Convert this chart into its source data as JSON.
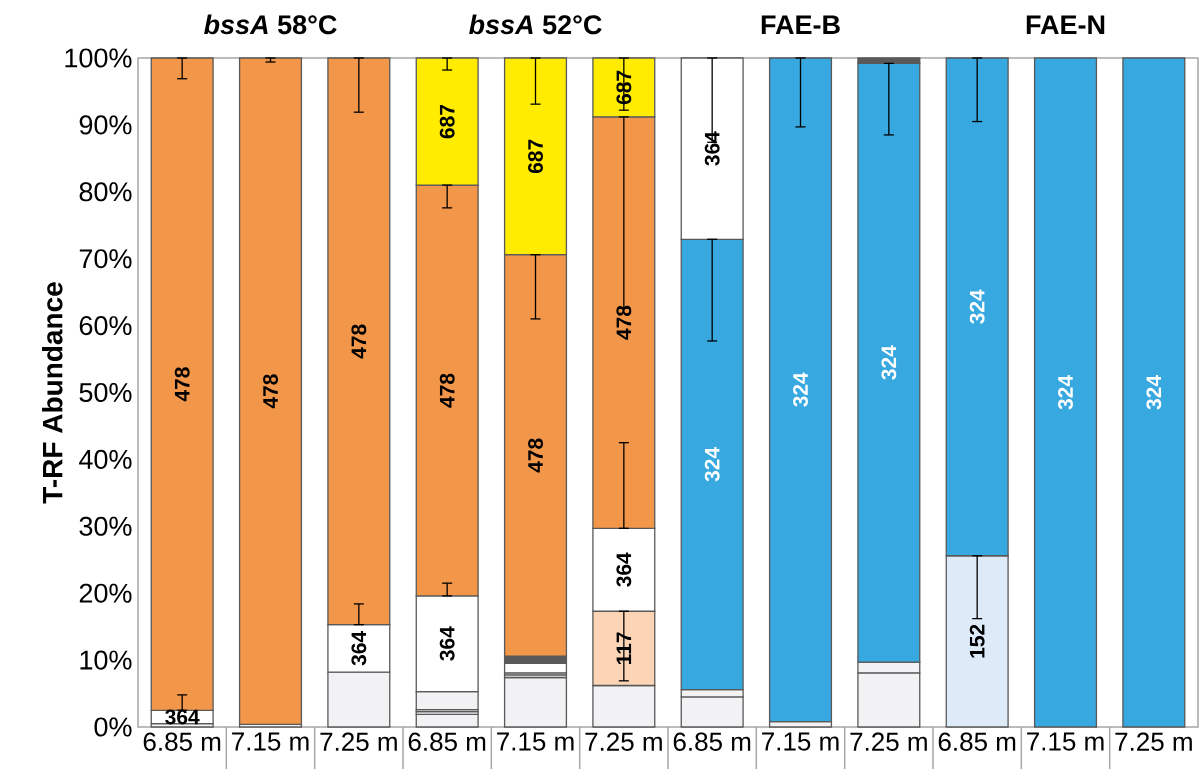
{
  "chart_data": {
    "type": "bar",
    "stacked": true,
    "ylabel": "T-RF Abundance",
    "categories": [
      "6.85 m",
      "7.15 m",
      "7.25 m",
      "6.85 m",
      "7.15 m",
      "7.25 m",
      "6.85 m",
      "7.15 m",
      "7.25 m",
      "6.85 m",
      "7.15 m",
      "7.25 m"
    ],
    "ylim": [
      0,
      100
    ],
    "yticks": [
      {
        "value": 0,
        "label": "0%"
      },
      {
        "value": 10,
        "label": "10%"
      },
      {
        "value": 20,
        "label": "20%"
      },
      {
        "value": 30,
        "label": "30%"
      },
      {
        "value": 40,
        "label": "40%"
      },
      {
        "value": 50,
        "label": "50%"
      },
      {
        "value": 60,
        "label": "60%"
      },
      {
        "value": 70,
        "label": "70%"
      },
      {
        "value": 80,
        "label": "80%"
      },
      {
        "value": 90,
        "label": "90%"
      },
      {
        "value": 100,
        "label": "100%"
      }
    ],
    "annotations": [
      "*bssA* 58°C",
      "*bssA* 52°C",
      "FAE-B",
      "FAE-N"
    ],
    "series": [
      {
        "color": "#f2f2f4",
        "values": [
          0.5,
          0.4,
          8.2,
          1.9,
          7.4,
          6.2,
          4.5,
          0.8,
          8.1,
          null,
          null,
          null
        ]
      },
      {
        "color": "#f2f2f4",
        "values": [
          null,
          null,
          null,
          0.4,
          0.4,
          null,
          1.1,
          null,
          1.6,
          null,
          null,
          null
        ]
      },
      {
        "color": "#f2f2f4",
        "values": [
          null,
          null,
          null,
          0.3,
          0.3,
          null,
          null,
          null,
          null,
          null,
          null,
          null
        ]
      },
      {
        "color": "#f2f2f4",
        "values": [
          null,
          null,
          null,
          2.7,
          null,
          null,
          null,
          null,
          null,
          null,
          null,
          null
        ]
      },
      {
        "name": "117",
        "color": "#fbd5b5",
        "values": [
          null,
          null,
          null,
          null,
          null,
          11.1,
          null,
          null,
          null,
          null,
          null,
          null
        ],
        "errors": [
          null,
          null,
          null,
          null,
          null,
          [
            6.9,
            17.3
          ],
          null,
          null,
          null,
          null,
          null,
          null
        ]
      },
      {
        "name": "152",
        "color": "#ddeaf8",
        "values": [
          null,
          null,
          null,
          null,
          null,
          null,
          null,
          null,
          null,
          25.6,
          null,
          null
        ],
        "errors": [
          null,
          null,
          null,
          null,
          null,
          null,
          null,
          null,
          null,
          [
            16.2,
            25.6
          ],
          null,
          null
        ]
      },
      {
        "name": "324",
        "color": "#38a8e0",
        "values": [
          null,
          null,
          null,
          null,
          null,
          null,
          67.3,
          99.2,
          89.5,
          74.4,
          100,
          100
        ],
        "errors": [
          null,
          null,
          null,
          null,
          null,
          null,
          [
            57.7,
            72.9
          ],
          [
            89.7,
            100
          ],
          [
            88.5,
            99.2
          ],
          [
            90.5,
            100
          ],
          null,
          null
        ]
      },
      {
        "name": "364",
        "color": "#ffffff",
        "values": [
          2.0,
          null,
          7.1,
          14.3,
          1.4,
          12.4,
          27.1,
          null,
          null,
          null,
          null,
          null
        ],
        "errors": [
          [
            2.5,
            4.8
          ],
          null,
          [
            15.3,
            18.4
          ],
          [
            19.6,
            21.5
          ],
          null,
          [
            29.7,
            42.5
          ],
          [
            87.4,
            100
          ],
          null,
          null,
          null,
          null,
          null
        ]
      },
      {
        "color": "#595959",
        "values": [
          null,
          null,
          null,
          null,
          1.1,
          null,
          null,
          null,
          0.8,
          null,
          null,
          null
        ]
      },
      {
        "name": "478",
        "color": "#f29649",
        "values": [
          97.5,
          99.6,
          84.7,
          61.4,
          60.0,
          61.5,
          null,
          null,
          null,
          null,
          null,
          null
        ],
        "errors": [
          [
            96.9,
            100
          ],
          [
            99.4,
            100
          ],
          [
            91.9,
            100
          ],
          [
            77.6,
            81.0
          ],
          [
            61.0,
            70.6
          ],
          [
            62.6,
            91.2
          ],
          null,
          null,
          null,
          null,
          null,
          null
        ]
      },
      {
        "name": "687",
        "color": "#ffec00",
        "values": [
          null,
          null,
          null,
          19.0,
          29.4,
          8.8,
          null,
          null,
          null,
          null,
          null,
          null
        ],
        "errors": [
          null,
          null,
          null,
          [
            98.2,
            100
          ],
          [
            93.1,
            100
          ],
          [
            92.2,
            100
          ],
          null,
          null,
          null,
          null,
          null,
          null
        ]
      }
    ]
  }
}
